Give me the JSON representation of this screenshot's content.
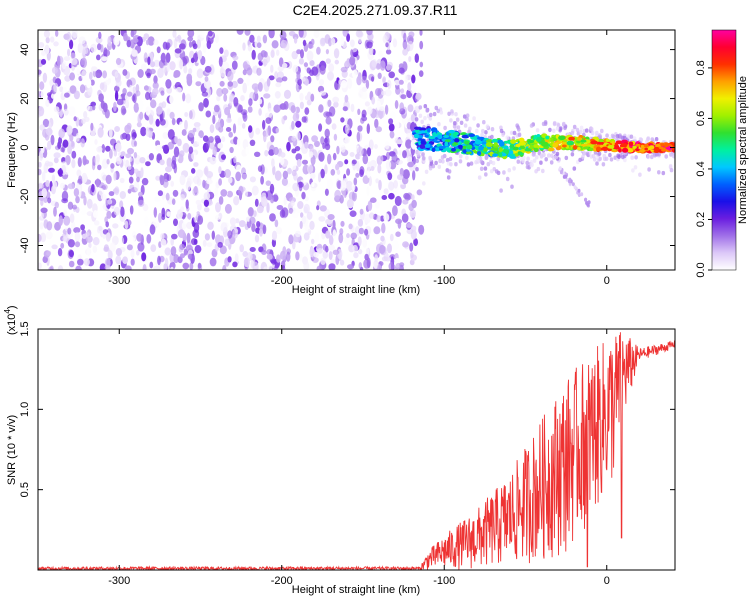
{
  "title": "C2E4.2025.271.09.37.R11",
  "chart_data": [
    {
      "type": "heatmap",
      "panel": "spectrogram",
      "xlabel": "Height of straight line (km)",
      "ylabel": "Frequency (Hz)",
      "xlim": [
        -350,
        42
      ],
      "ylim": [
        -50,
        48
      ],
      "xticks": [
        -300,
        -200,
        -100,
        0
      ],
      "xtick_labels": [
        "-300",
        "-200",
        "-100",
        "0"
      ],
      "yticks": [
        -40,
        -20,
        0,
        20,
        40
      ],
      "ytick_labels": [
        "-40",
        "-20",
        "0",
        "20",
        "40"
      ],
      "noise_region_x": [
        -350,
        -118
      ],
      "signal_track": [
        {
          "x": -118,
          "y": 4
        },
        {
          "x": -100,
          "y": 3
        },
        {
          "x": -80,
          "y": 1
        },
        {
          "x": -60,
          "y": -1
        },
        {
          "x": -40,
          "y": 2
        },
        {
          "x": -20,
          "y": 2
        },
        {
          "x": 0,
          "y": 1
        },
        {
          "x": 20,
          "y": 0
        },
        {
          "x": 42,
          "y": 0
        }
      ],
      "colorbar": {
        "label": "Normalized spectral amplitude",
        "range": [
          0,
          0.95
        ],
        "ticks": [
          0.0,
          0.2,
          0.4,
          0.6,
          0.8
        ],
        "tick_labels": [
          "0.0",
          "0.2",
          "0.4",
          "0.6",
          "0.8"
        ],
        "colors": [
          "#ffffff",
          "#dcc8f8",
          "#a070e8",
          "#6a1ee0",
          "#1a10e8",
          "#0060ff",
          "#00c8ff",
          "#00f0a0",
          "#30e030",
          "#a0f000",
          "#f0f000",
          "#ffa000",
          "#ff3000",
          "#ff0030",
          "#ff00a0"
        ]
      }
    },
    {
      "type": "line",
      "panel": "snr",
      "xlabel": "Height of straight line (km)",
      "ylabel": "SNR (10 * v/v)",
      "multiplier": "(x10",
      "multiplier_exp": "4",
      "multiplier_close": ")",
      "xlim": [
        -350,
        42
      ],
      "ylim": [
        0,
        1.5
      ],
      "xticks": [
        -300,
        -200,
        -100,
        0
      ],
      "xtick_labels": [
        "-300",
        "-200",
        "-100",
        "0"
      ],
      "yticks": [
        0.5,
        1.0,
        1.5
      ],
      "ytick_labels": [
        "0.5",
        "1.0",
        "1.5"
      ],
      "color": "#ee3333",
      "envelope": [
        {
          "x": -350,
          "lo": 0.0,
          "hi": 0.02
        },
        {
          "x": -115,
          "lo": 0.0,
          "hi": 0.02
        },
        {
          "x": -110,
          "lo": 0.0,
          "hi": 0.12
        },
        {
          "x": -100,
          "lo": 0.0,
          "hi": 0.22
        },
        {
          "x": -80,
          "lo": 0.0,
          "hi": 0.38
        },
        {
          "x": -60,
          "lo": 0.02,
          "hi": 0.6
        },
        {
          "x": -40,
          "lo": 0.05,
          "hi": 0.95
        },
        {
          "x": -25,
          "lo": 0.1,
          "hi": 1.2
        },
        {
          "x": -10,
          "lo": 0.3,
          "hi": 1.35
        },
        {
          "x": 5,
          "lo": 0.55,
          "hi": 1.5
        },
        {
          "x": 10,
          "lo": 0.9,
          "hi": 1.5
        },
        {
          "x": 20,
          "lo": 1.3,
          "hi": 1.38
        },
        {
          "x": 42,
          "lo": 1.38,
          "hi": 1.43
        }
      ],
      "dips": [
        {
          "x": 9,
          "y": 0.2
        },
        {
          "x": -12,
          "y": 0.02
        }
      ]
    }
  ]
}
